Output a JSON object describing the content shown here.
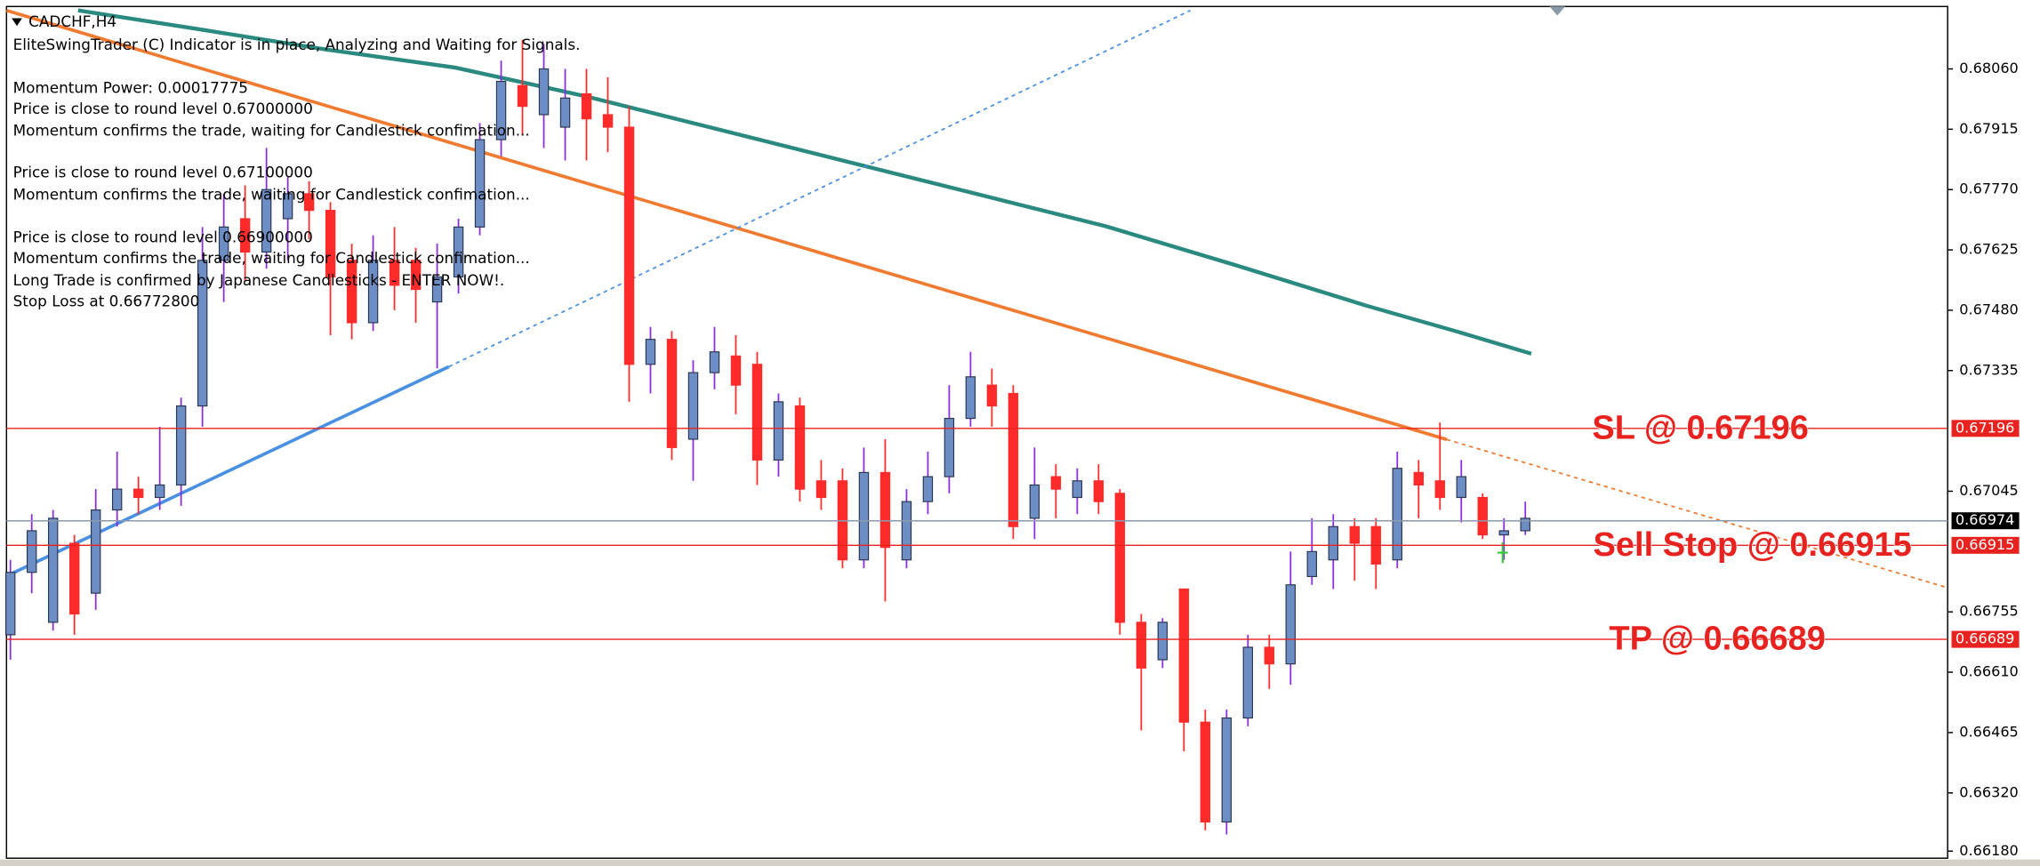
{
  "chart_data": {
    "type": "candlestick",
    "title": "CADCHF,H4",
    "info_lines": [
      "EliteSwingTrader (C) Indicator is in place, Analyzing and Waiting for Signals.",
      "Momentum Power: 0.00017775",
      "Price is close to round level 0.67000000",
      "Momentum confirms the trade, waiting for Candlestick confimation...",
      "Price is close to round level 0.67100000",
      "Momentum confirms the trade, waiting for Candlestick confimation...",
      "Price is close to round level 0.66900000",
      "Momentum confirms the trade, waiting for Candlestick confimation...",
      "Long Trade is confirmed by Japanese Candlesticks - ENTER NOW!.",
      "Stop Loss at 0.66772800"
    ],
    "ylim": [
      0.66163,
      0.6821
    ],
    "yticks": [
      {
        "value": 0.6806,
        "label": "0.68060"
      },
      0.67915,
      {
        "value": 0.6777,
        "label": "0.67770"
      },
      0.67625,
      {
        "value": 0.6748,
        "label": "0.67480"
      },
      0.67335,
      0.67045,
      0.66755,
      {
        "value": 0.6661,
        "label": "0.66610"
      },
      0.66465,
      {
        "value": 0.6632,
        "label": "0.66320"
      },
      {
        "value": 0.6618,
        "label": "0.66180"
      }
    ],
    "up_color": "#6d8ec4",
    "down_color": "#ff2b2b",
    "current_price": 0.66974,
    "levels": [
      {
        "name": "SL @ 0.67196",
        "price": 0.67196,
        "color": "#e8231f"
      },
      {
        "name": "Sell Stop @ 0.66915",
        "price": 0.66915,
        "color": "#e8231f"
      },
      {
        "name": "TP @ 0.66689",
        "price": 0.66689,
        "color": "#e8231f"
      }
    ],
    "candles": [
      [
        0.667,
        0.6688,
        0.6664,
        0.6685
      ],
      [
        0.6685,
        0.6699,
        0.668,
        0.6695
      ],
      [
        0.6673,
        0.67,
        0.6671,
        0.6698
      ],
      [
        0.6692,
        0.6694,
        0.667,
        0.6675
      ],
      [
        0.668,
        0.6705,
        0.6676,
        0.67
      ],
      [
        0.67,
        0.6714,
        0.6696,
        0.6705
      ],
      [
        0.6705,
        0.6708,
        0.6699,
        0.6703
      ],
      [
        0.6703,
        0.672,
        0.67,
        0.6706
      ],
      [
        0.6706,
        0.6727,
        0.6701,
        0.6725
      ],
      [
        0.6725,
        0.6768,
        0.672,
        0.676
      ],
      [
        0.676,
        0.6776,
        0.675,
        0.6768
      ],
      [
        0.677,
        0.6778,
        0.6755,
        0.6762
      ],
      [
        0.6762,
        0.6787,
        0.6758,
        0.6777
      ],
      [
        0.677,
        0.678,
        0.676,
        0.6776
      ],
      [
        0.6776,
        0.6779,
        0.6765,
        0.6772
      ],
      [
        0.6772,
        0.6774,
        0.6742,
        0.6756
      ],
      [
        0.676,
        0.6764,
        0.6741,
        0.6745
      ],
      [
        0.6745,
        0.6766,
        0.6743,
        0.676
      ],
      [
        0.676,
        0.6768,
        0.6748,
        0.6754
      ],
      [
        0.676,
        0.6763,
        0.6745,
        0.6753
      ],
      [
        0.675,
        0.6764,
        0.6734,
        0.6756
      ],
      [
        0.6756,
        0.677,
        0.6752,
        0.6768
      ],
      [
        0.6768,
        0.6793,
        0.6766,
        0.6789
      ],
      [
        0.6789,
        0.6808,
        0.6785,
        0.6803
      ],
      [
        0.6802,
        0.6813,
        0.679,
        0.6797
      ],
      [
        0.6795,
        0.6812,
        0.6787,
        0.6806
      ],
      [
        0.6792,
        0.6806,
        0.6784,
        0.6799
      ],
      [
        0.68,
        0.6806,
        0.6784,
        0.6794
      ],
      [
        0.6795,
        0.6804,
        0.6786,
        0.6792
      ],
      [
        0.6792,
        0.6797,
        0.6726,
        0.6735
      ],
      [
        0.6735,
        0.6744,
        0.6728,
        0.6741
      ],
      [
        0.6741,
        0.6743,
        0.6712,
        0.6715
      ],
      [
        0.6717,
        0.6736,
        0.6707,
        0.6733
      ],
      [
        0.6733,
        0.6744,
        0.6729,
        0.6738
      ],
      [
        0.6737,
        0.6742,
        0.6723,
        0.673
      ],
      [
        0.6735,
        0.6738,
        0.6706,
        0.6712
      ],
      [
        0.6712,
        0.6728,
        0.6708,
        0.6726
      ],
      [
        0.6725,
        0.6727,
        0.6702,
        0.6705
      ],
      [
        0.6707,
        0.6712,
        0.67,
        0.6703
      ],
      [
        0.6707,
        0.671,
        0.6686,
        0.6688
      ],
      [
        0.6688,
        0.6715,
        0.6686,
        0.6709
      ],
      [
        0.6709,
        0.6717,
        0.6678,
        0.6691
      ],
      [
        0.6688,
        0.6705,
        0.6686,
        0.6702
      ],
      [
        0.6702,
        0.6714,
        0.6699,
        0.6708
      ],
      [
        0.6708,
        0.673,
        0.6704,
        0.6722
      ],
      [
        0.6722,
        0.6738,
        0.672,
        0.6732
      ],
      [
        0.673,
        0.6734,
        0.672,
        0.6725
      ],
      [
        0.6728,
        0.673,
        0.6693,
        0.6696
      ],
      [
        0.6698,
        0.6715,
        0.6693,
        0.6706
      ],
      [
        0.6708,
        0.6711,
        0.6698,
        0.6705
      ],
      [
        0.6703,
        0.671,
        0.6699,
        0.6707
      ],
      [
        0.6707,
        0.6711,
        0.6699,
        0.6702
      ],
      [
        0.6704,
        0.6705,
        0.667,
        0.6673
      ],
      [
        0.6673,
        0.6675,
        0.6647,
        0.6662
      ],
      [
        0.6664,
        0.6674,
        0.6662,
        0.6673
      ],
      [
        0.6681,
        0.6681,
        0.6642,
        0.6649
      ],
      [
        0.6649,
        0.6652,
        0.6623,
        0.6625
      ],
      [
        0.6625,
        0.6652,
        0.6622,
        0.665
      ],
      [
        0.665,
        0.667,
        0.6648,
        0.6667
      ],
      [
        0.6667,
        0.667,
        0.6657,
        0.6663
      ],
      [
        0.6663,
        0.669,
        0.6658,
        0.6682
      ],
      [
        0.6684,
        0.6698,
        0.6682,
        0.669
      ],
      [
        0.6688,
        0.6699,
        0.6681,
        0.6696
      ],
      [
        0.6696,
        0.6698,
        0.6683,
        0.6692
      ],
      [
        0.6696,
        0.6698,
        0.6681,
        0.6687
      ],
      [
        0.6688,
        0.6714,
        0.6686,
        0.671
      ],
      [
        0.6709,
        0.6712,
        0.6698,
        0.6706
      ],
      [
        0.6707,
        0.6721,
        0.67,
        0.6703
      ],
      [
        0.6703,
        0.6712,
        0.6697,
        0.6708
      ],
      [
        0.6703,
        0.6704,
        0.6693,
        0.6694
      ],
      [
        0.6694,
        0.6698,
        0.6688,
        0.6695
      ],
      [
        0.6695,
        0.6702,
        0.6694,
        0.6698
      ]
    ]
  }
}
